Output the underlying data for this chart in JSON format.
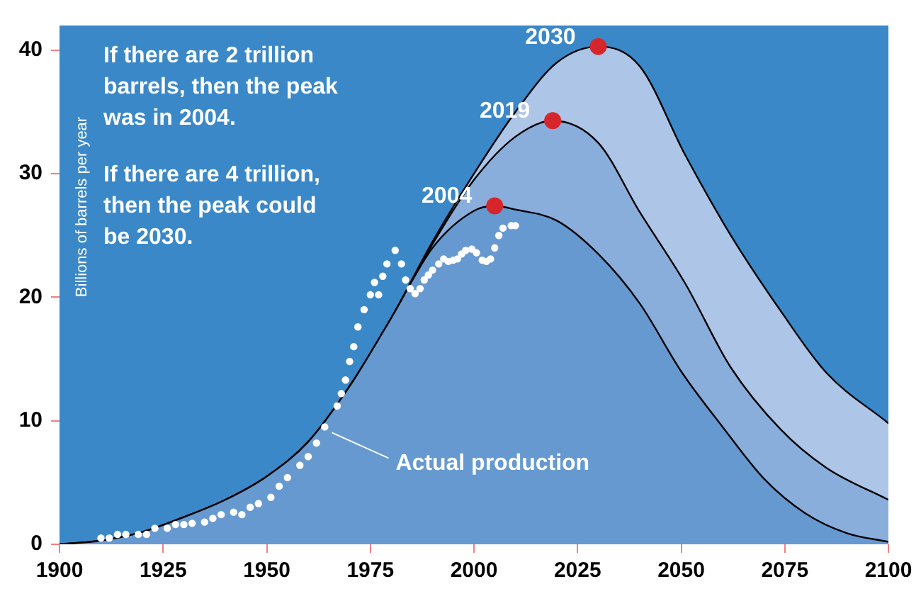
{
  "chart_data": {
    "type": "area",
    "ylabel": "Billions of barrels per year",
    "xlim": [
      1900,
      2100
    ],
    "xticks": [
      1900,
      1925,
      1950,
      1975,
      2000,
      2025,
      2050,
      2075,
      2100
    ],
    "ylim": [
      0,
      42
    ],
    "yticks": [
      0,
      10,
      20,
      30,
      40
    ],
    "grid": false,
    "legend": false,
    "line_style": "solid",
    "series": [
      {
        "marker": "none",
        "color": "#adc5e6",
        "x": [
          1900,
          1910,
          1920,
          1930,
          1940,
          1950,
          1960,
          1970,
          1980,
          1990,
          2000,
          2010,
          2020,
          2030,
          2040,
          2051,
          2062,
          2074,
          2085,
          2100
        ],
        "values": [
          0,
          0.3,
          1.0,
          2.2,
          3.6,
          5.5,
          8.3,
          12.8,
          18.3,
          24.5,
          30,
          35,
          39,
          40.3,
          38.7,
          31.5,
          25,
          18.9,
          13.9,
          9.8
        ]
      },
      {
        "marker": "none",
        "color": "#8aaedb",
        "x": [
          1900,
          1910,
          1920,
          1930,
          1940,
          1950,
          1960,
          1970,
          1980,
          1990,
          2000,
          2010,
          2019,
          2030,
          2040,
          2051,
          2062,
          2074,
          2085,
          2100
        ],
        "values": [
          0,
          0.3,
          1.0,
          2.2,
          3.6,
          5.5,
          8.3,
          12.8,
          18.3,
          24.3,
          29.5,
          33,
          34.3,
          32.5,
          26.9,
          21.1,
          14.3,
          9.3,
          6.2,
          3.6
        ]
      },
      {
        "marker": "none",
        "color": "#6699d0",
        "x": [
          1900,
          1910,
          1920,
          1930,
          1940,
          1950,
          1960,
          1970,
          1980,
          1990,
          2000,
          2005,
          2010,
          2020,
          2030,
          2040,
          2050,
          2060,
          2070,
          2080,
          2090,
          2100
        ],
        "values": [
          0,
          0.3,
          1.0,
          2.2,
          3.6,
          5.5,
          8.3,
          12.8,
          18.3,
          24,
          27,
          27.4,
          27.1,
          26.2,
          23.5,
          19.5,
          14,
          9.5,
          5.3,
          2.5,
          0.9,
          0.2
        ]
      },
      {
        "type": "scatter",
        "marker": "circle",
        "color": "#ffffff",
        "x": [
          1910,
          1912,
          1914,
          1916,
          1919,
          1921,
          1923,
          1926,
          1928,
          1930,
          1932,
          1935,
          1937,
          1939,
          1942,
          1944,
          1946,
          1948,
          1951,
          1953,
          1955,
          1958,
          1960,
          1962,
          1964,
          1967,
          1968,
          1969,
          1970,
          1971,
          1972,
          1973.5,
          1975,
          1976,
          1977,
          1978,
          1979,
          1981,
          1982.5,
          1983.5,
          1984.6,
          1985.8,
          1987,
          1988,
          1989,
          1990,
          1991.5,
          1992.7,
          1993.8,
          1995,
          1996,
          1997,
          1998,
          1999.5,
          2000.6,
          2002,
          2003,
          2004,
          2005,
          2006,
          2007,
          2009,
          2010
        ],
        "values": [
          0.5,
          0.5,
          0.8,
          0.8,
          0.8,
          0.8,
          1.3,
          1.3,
          1.6,
          1.6,
          1.7,
          1.8,
          2.1,
          2.4,
          2.6,
          2.4,
          3.0,
          3.3,
          3.8,
          4.7,
          5.4,
          6.4,
          7.1,
          8.2,
          9.5,
          11.2,
          12.2,
          13.3,
          14.8,
          16.0,
          17.6,
          19.0,
          20.2,
          21.2,
          20.2,
          21.7,
          22.7,
          23.8,
          22.7,
          21.4,
          20.7,
          20.3,
          20.7,
          21.4,
          21.8,
          22.2,
          22.7,
          23.1,
          22.9,
          23.0,
          23.1,
          23.5,
          23.8,
          23.9,
          23.6,
          23.0,
          22.9,
          23.1,
          24.0,
          25.0,
          25.6,
          25.8,
          25.8
        ]
      },
      {
        "type": "scatter",
        "marker": "circle",
        "color": "#d7262b",
        "x": [
          2005,
          2019,
          2030
        ],
        "values": [
          27.4,
          34.3,
          40.3
        ]
      }
    ],
    "annotations": [
      "If there are 2 trillion barrels, then the peak was in 2004.",
      "If there are 4 trillion, then the peak could be 2030.",
      {
        "text": "2004",
        "x": 2005,
        "y": 27.4
      },
      {
        "text": "2019",
        "x": 2019,
        "y": 34.3
      },
      {
        "text": "2030",
        "x": 2030,
        "y": 40.3
      },
      {
        "text": "Actual production",
        "x": 1964,
        "y": 9.5
      }
    ]
  }
}
